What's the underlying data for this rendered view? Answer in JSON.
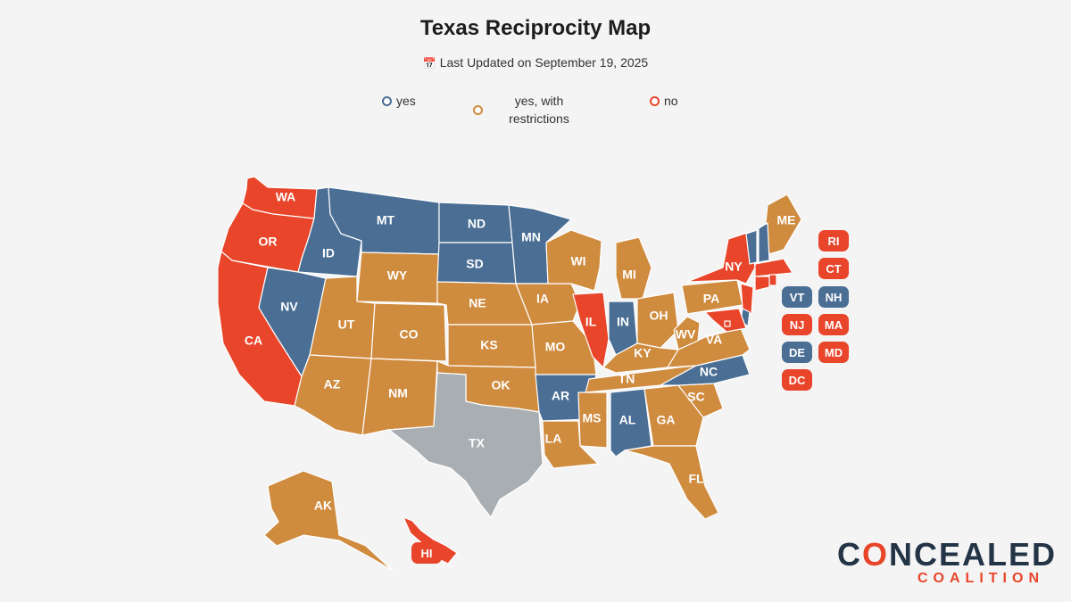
{
  "title": "Texas Reciprocity Map",
  "updated": "Last Updated on September 19, 2025",
  "legend": {
    "yes": "yes",
    "restricted": "yes, with restrictions",
    "no": "no"
  },
  "colors": {
    "yes": "#4a6e94",
    "restricted": "#cf8b3e",
    "no": "#e8452a",
    "home": "#a9aeb3"
  },
  "states": [
    {
      "code": "WA",
      "status": "no"
    },
    {
      "code": "OR",
      "status": "no"
    },
    {
      "code": "CA",
      "status": "no"
    },
    {
      "code": "ID",
      "status": "yes"
    },
    {
      "code": "NV",
      "status": "yes"
    },
    {
      "code": "MT",
      "status": "yes"
    },
    {
      "code": "WY",
      "status": "restricted"
    },
    {
      "code": "UT",
      "status": "restricted"
    },
    {
      "code": "CO",
      "status": "restricted"
    },
    {
      "code": "AZ",
      "status": "restricted"
    },
    {
      "code": "NM",
      "status": "restricted"
    },
    {
      "code": "ND",
      "status": "yes"
    },
    {
      "code": "SD",
      "status": "yes"
    },
    {
      "code": "NE",
      "status": "restricted"
    },
    {
      "code": "KS",
      "status": "restricted"
    },
    {
      "code": "OK",
      "status": "restricted"
    },
    {
      "code": "TX",
      "status": "home"
    },
    {
      "code": "MN",
      "status": "yes"
    },
    {
      "code": "IA",
      "status": "restricted"
    },
    {
      "code": "MO",
      "status": "restricted"
    },
    {
      "code": "AR",
      "status": "yes"
    },
    {
      "code": "LA",
      "status": "restricted"
    },
    {
      "code": "WI",
      "status": "restricted"
    },
    {
      "code": "IL",
      "status": "no"
    },
    {
      "code": "MI",
      "status": "restricted"
    },
    {
      "code": "IN",
      "status": "yes"
    },
    {
      "code": "OH",
      "status": "restricted"
    },
    {
      "code": "KY",
      "status": "restricted"
    },
    {
      "code": "TN",
      "status": "restricted"
    },
    {
      "code": "MS",
      "status": "restricted"
    },
    {
      "code": "AL",
      "status": "yes"
    },
    {
      "code": "GA",
      "status": "restricted"
    },
    {
      "code": "FL",
      "status": "restricted"
    },
    {
      "code": "SC",
      "status": "restricted"
    },
    {
      "code": "NC",
      "status": "yes"
    },
    {
      "code": "VA",
      "status": "restricted"
    },
    {
      "code": "WV",
      "status": "restricted"
    },
    {
      "code": "PA",
      "status": "restricted"
    },
    {
      "code": "NY",
      "status": "no"
    },
    {
      "code": "ME",
      "status": "restricted"
    },
    {
      "code": "AK",
      "status": "restricted"
    },
    {
      "code": "HI",
      "status": "no"
    },
    {
      "code": "VT",
      "status": "yes"
    },
    {
      "code": "NH",
      "status": "yes"
    },
    {
      "code": "MA",
      "status": "no"
    },
    {
      "code": "RI",
      "status": "no"
    },
    {
      "code": "CT",
      "status": "no"
    },
    {
      "code": "NJ",
      "status": "no"
    },
    {
      "code": "DE",
      "status": "yes"
    },
    {
      "code": "MD",
      "status": "no"
    },
    {
      "code": "DC",
      "status": "no"
    }
  ],
  "callouts": [
    "RI",
    "CT",
    "VT",
    "NH",
    "NJ",
    "MA",
    "DE",
    "MD",
    "DC",
    "HI"
  ],
  "brand": {
    "line1a": "C",
    "line1b": "O",
    "line1c": "NCEALED",
    "line2": "COALITION"
  }
}
